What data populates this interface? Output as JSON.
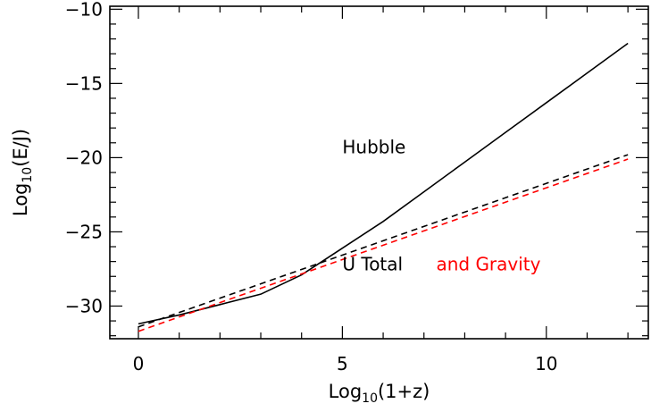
{
  "chart_data": {
    "type": "line",
    "title": "",
    "xlabel": {
      "base": "Log",
      "sub": "10",
      "rest": "(1+z)"
    },
    "ylabel": {
      "base": "Log",
      "sub": "10",
      "rest": "(E/J)"
    },
    "xlim": [
      -0.7,
      12.5
    ],
    "ylim": [
      -32.2,
      -9.8
    ],
    "x_major_ticks": [
      0,
      5,
      10
    ],
    "x_major_tick_labels": [
      "0",
      "5",
      "10"
    ],
    "x_minor_step": 1,
    "y_major_ticks": [
      -30,
      -25,
      -20,
      -15,
      -10
    ],
    "y_major_tick_labels": [
      "−30",
      "−25",
      "−20",
      "−15",
      "−10"
    ],
    "y_minor_step": 1,
    "grid": false,
    "series": [
      {
        "name": "Hubble",
        "style": "solid",
        "color": "#000000",
        "x": [
          0,
          1,
          2,
          3,
          4,
          5,
          6,
          7,
          8,
          9,
          10,
          11,
          12
        ],
        "y": [
          -31.2,
          -30.6,
          -29.9,
          -29.2,
          -27.9,
          -26.1,
          -24.3,
          -22.3,
          -20.3,
          -18.3,
          -16.3,
          -14.3,
          -12.3
        ]
      },
      {
        "name": "U Total",
        "style": "dashed",
        "color": "#000000",
        "x": [
          0,
          12
        ],
        "y": [
          -31.4,
          -19.8
        ]
      },
      {
        "name": "and Gravity",
        "style": "dashed",
        "color": "#ff0000",
        "x": [
          0,
          12
        ],
        "y": [
          -31.7,
          -20.1
        ]
      }
    ],
    "annotations": {
      "hubble": {
        "text": "Hubble",
        "color": "#000000",
        "x": 5.0,
        "y": -19.7
      },
      "u_total": {
        "text": "U Total",
        "color": "#000000",
        "x": 5.0,
        "y": -27.6
      },
      "gravity": {
        "text": "and Gravity",
        "color": "#ff0000",
        "x": 7.3,
        "y": -27.6
      }
    }
  }
}
